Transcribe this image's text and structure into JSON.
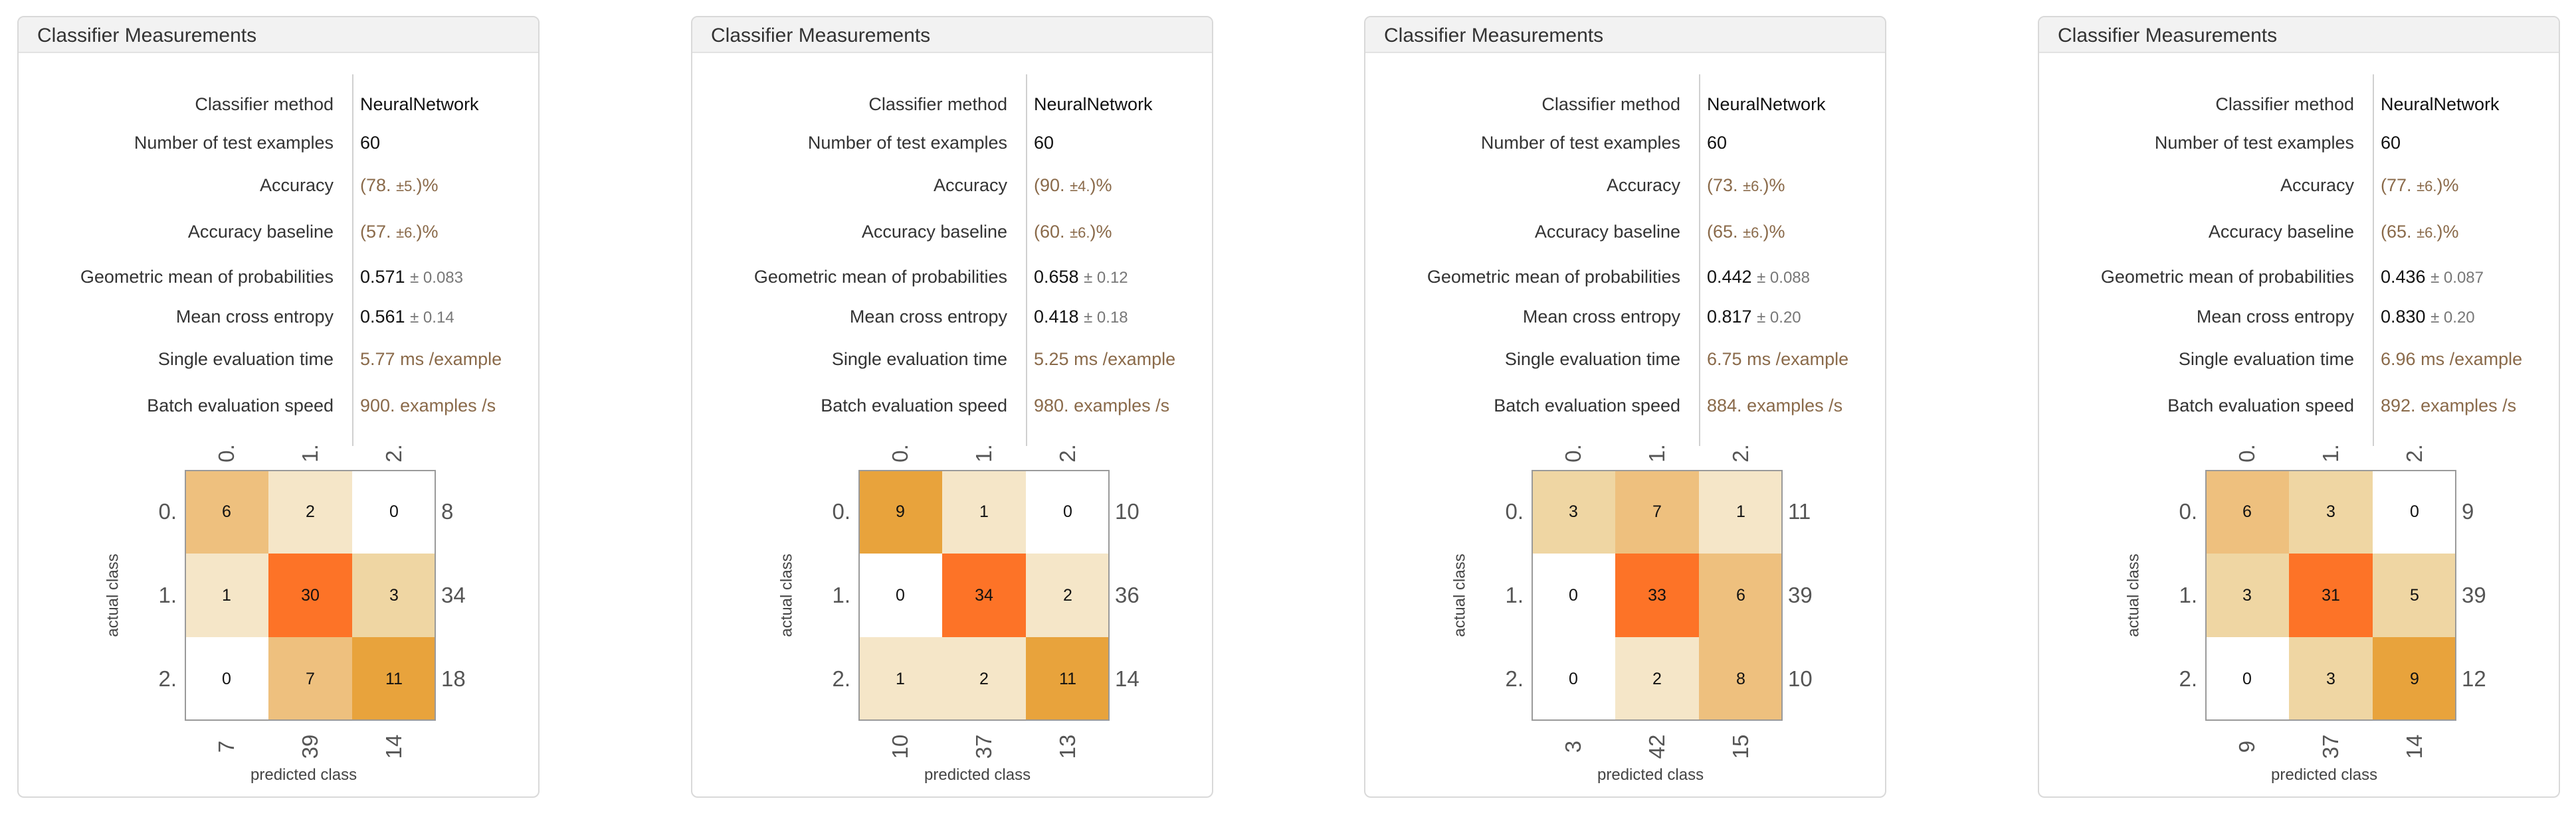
{
  "colors": {
    "panel_border": "#d9d9d9",
    "header_bg": "#f2f2f2",
    "brown_text": "#8a6a4a",
    "cell_scale": [
      "#ffffff",
      "#f5e6c8",
      "#efd6a3",
      "#eec07e",
      "#e8a33c",
      "#fd7327"
    ]
  },
  "labels": {
    "classifier_method": "Classifier method",
    "num_test": "Number of test examples",
    "accuracy": "Accuracy",
    "accuracy_baseline": "Accuracy baseline",
    "geo_mean": "Geometric mean of probabilities",
    "cross_entropy": "Mean cross entropy",
    "single_eval": "Single evaluation time",
    "batch_speed": "Batch evaluation speed",
    "predicted_class": "predicted class",
    "actual_class": "actual class"
  },
  "panels": [
    {
      "title": "Classifier Measurements",
      "method": "NeuralNetwork",
      "num_test": "60",
      "accuracy": {
        "open": "(",
        "val": "78.",
        "err": "±5.",
        "close": ")%"
      },
      "accuracy_baseline": {
        "open": "(",
        "val": "57.",
        "err": "±6.",
        "close": ")%"
      },
      "geo_mean": {
        "val": "0.571",
        "err": "± 0.083"
      },
      "cross_entropy": {
        "val": "0.561",
        "err": "± 0.14"
      },
      "single_eval": {
        "val": "5.77",
        "unit": "ms /example"
      },
      "batch_speed": {
        "val": "900.",
        "unit": "examples /s"
      },
      "class_labels": [
        "0.",
        "1.",
        "2."
      ],
      "matrix": [
        [
          6,
          2,
          0
        ],
        [
          1,
          30,
          3
        ],
        [
          0,
          7,
          11
        ]
      ],
      "row_totals": [
        "8",
        "34",
        "18"
      ],
      "col_totals": [
        "7",
        "39",
        "14"
      ]
    },
    {
      "title": "Classifier Measurements",
      "method": "NeuralNetwork",
      "num_test": "60",
      "accuracy": {
        "open": "(",
        "val": "90.",
        "err": "±4.",
        "close": ")%"
      },
      "accuracy_baseline": {
        "open": "(",
        "val": "60.",
        "err": "±6.",
        "close": ")%"
      },
      "geo_mean": {
        "val": "0.658",
        "err": "± 0.12"
      },
      "cross_entropy": {
        "val": "0.418",
        "err": "± 0.18"
      },
      "single_eval": {
        "val": "5.25",
        "unit": "ms /example"
      },
      "batch_speed": {
        "val": "980.",
        "unit": "examples /s"
      },
      "class_labels": [
        "0.",
        "1.",
        "2."
      ],
      "matrix": [
        [
          9,
          1,
          0
        ],
        [
          0,
          34,
          2
        ],
        [
          1,
          2,
          11
        ]
      ],
      "row_totals": [
        "10",
        "36",
        "14"
      ],
      "col_totals": [
        "10",
        "37",
        "13"
      ]
    },
    {
      "title": "Classifier Measurements",
      "method": "NeuralNetwork",
      "num_test": "60",
      "accuracy": {
        "open": "(",
        "val": "73.",
        "err": "±6.",
        "close": ")%"
      },
      "accuracy_baseline": {
        "open": "(",
        "val": "65.",
        "err": "±6.",
        "close": ")%"
      },
      "geo_mean": {
        "val": "0.442",
        "err": "± 0.088"
      },
      "cross_entropy": {
        "val": "0.817",
        "err": "± 0.20"
      },
      "single_eval": {
        "val": "6.75",
        "unit": "ms /example"
      },
      "batch_speed": {
        "val": "884.",
        "unit": "examples /s"
      },
      "class_labels": [
        "0.",
        "1.",
        "2."
      ],
      "matrix": [
        [
          3,
          7,
          1
        ],
        [
          0,
          33,
          6
        ],
        [
          0,
          2,
          8
        ]
      ],
      "row_totals": [
        "11",
        "39",
        "10"
      ],
      "col_totals": [
        "3",
        "42",
        "15"
      ]
    },
    {
      "title": "Classifier Measurements",
      "method": "NeuralNetwork",
      "num_test": "60",
      "accuracy": {
        "open": "(",
        "val": "77.",
        "err": "±6.",
        "close": ")%"
      },
      "accuracy_baseline": {
        "open": "(",
        "val": "65.",
        "err": "±6.",
        "close": ")%"
      },
      "geo_mean": {
        "val": "0.436",
        "err": "± 0.087"
      },
      "cross_entropy": {
        "val": "0.830",
        "err": "± 0.20"
      },
      "single_eval": {
        "val": "6.96",
        "unit": "ms /example"
      },
      "batch_speed": {
        "val": "892.",
        "unit": "examples /s"
      },
      "class_labels": [
        "0.",
        "1.",
        "2."
      ],
      "matrix": [
        [
          6,
          3,
          0
        ],
        [
          3,
          31,
          5
        ],
        [
          0,
          3,
          9
        ]
      ],
      "row_totals": [
        "9",
        "39",
        "12"
      ],
      "col_totals": [
        "9",
        "37",
        "14"
      ]
    }
  ]
}
